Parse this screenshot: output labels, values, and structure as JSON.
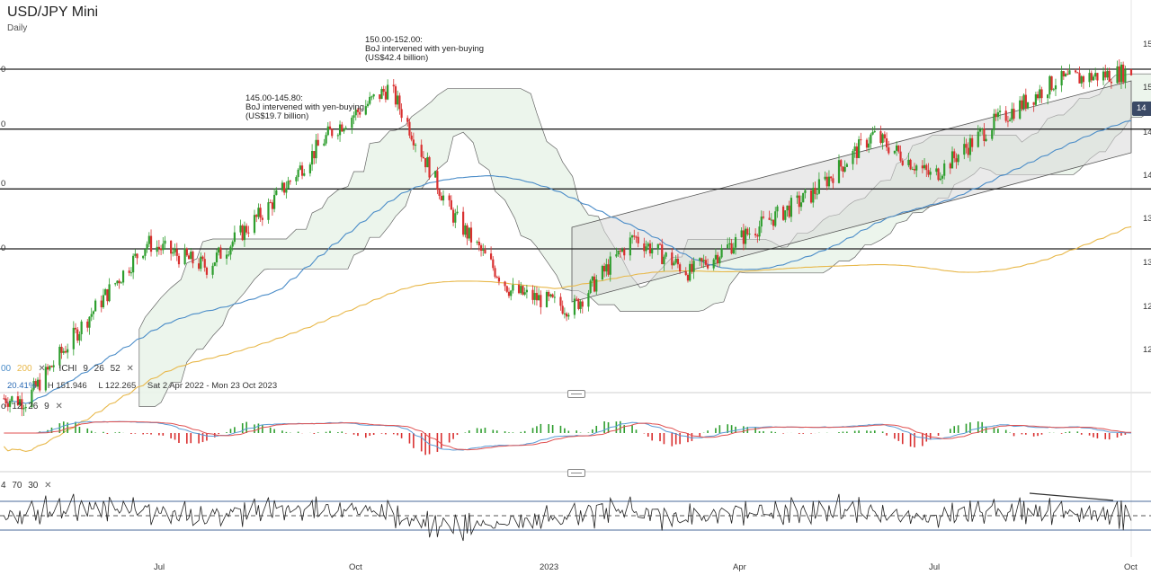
{
  "header": {
    "title": "USD/JPY Mini",
    "timeframe": "Daily"
  },
  "annotations": {
    "boj_2022_10": [
      "150.00-152.00:",
      "BoJ intervened with yen-buying",
      "(US$42.4 billion)"
    ],
    "boj_2022_09": [
      "145.00-145.80:",
      "BoJ intervened with yen-buying",
      "(US$19.7 billion)"
    ]
  },
  "indicators": {
    "ma_legend": [
      "00",
      "200"
    ],
    "ma_colors": [
      "#4a8cc8",
      "#e8b84a"
    ],
    "ichimoku": {
      "label": "ICHI",
      "params": [
        "9",
        "26",
        "52"
      ]
    },
    "stats": {
      "change": "20.41%",
      "high": "H 151.946",
      "low": "L 122.265",
      "range": "Sat 2 Apr 2022 - Mon 23 Oct 2023"
    },
    "macd_params": [
      "12",
      "26",
      "9"
    ],
    "rsi_params": [
      "4",
      "70",
      "30"
    ]
  },
  "axis": {
    "x_ticks": [
      "Jul",
      "Oct",
      "2023",
      "Apr",
      "Jul",
      "Oct"
    ],
    "y_ticks_right_cut": [
      "15",
      "15",
      "14",
      "14",
      "13",
      "13",
      "12",
      "12"
    ],
    "y_ticks_left_cut": [
      "0",
      "0",
      "0",
      "0"
    ],
    "price_tag": "14"
  },
  "colors": {
    "up": "#2e9e2e",
    "down": "#d93030",
    "macd": "#5a9bd5",
    "signal": "#e05050",
    "rsi": "#222222",
    "channel": "#d9d9d9",
    "levels": "#222222"
  },
  "chart_data": {
    "type": "candlestick",
    "title": "USD/JPY Mini",
    "subtitle": "Daily",
    "date_range": [
      "2022-04-02",
      "2023-10-23"
    ],
    "high": 151.946,
    "low": 122.265,
    "change_pct": 20.41,
    "horizontal_levels": [
      150.0,
      145.0,
      140.0,
      135.0
    ],
    "price_path_monthly": [
      {
        "date": "2022-04",
        "close": 122.3
      },
      {
        "date": "2022-05",
        "close": 129.0
      },
      {
        "date": "2022-06",
        "close": 135.5
      },
      {
        "date": "2022-07",
        "close": 133.5
      },
      {
        "date": "2022-08",
        "close": 138.5
      },
      {
        "date": "2022-09",
        "close": 144.7
      },
      {
        "date": "2022-10",
        "close": 148.5
      },
      {
        "date": "2022-11",
        "close": 138.0
      },
      {
        "date": "2022-12",
        "close": 131.5
      },
      {
        "date": "2023-01",
        "close": 130.0
      },
      {
        "date": "2023-02",
        "close": 136.0
      },
      {
        "date": "2023-03",
        "close": 133.0
      },
      {
        "date": "2023-04",
        "close": 136.5
      },
      {
        "date": "2023-05",
        "close": 139.5
      },
      {
        "date": "2023-06",
        "close": 144.5
      },
      {
        "date": "2023-07",
        "close": 141.0
      },
      {
        "date": "2023-08",
        "close": 145.5
      },
      {
        "date": "2023-09",
        "close": 149.0
      }
    ],
    "rsi_levels": [
      70,
      30
    ],
    "macd": {
      "fast": 12,
      "slow": 26,
      "signal": 9
    }
  }
}
